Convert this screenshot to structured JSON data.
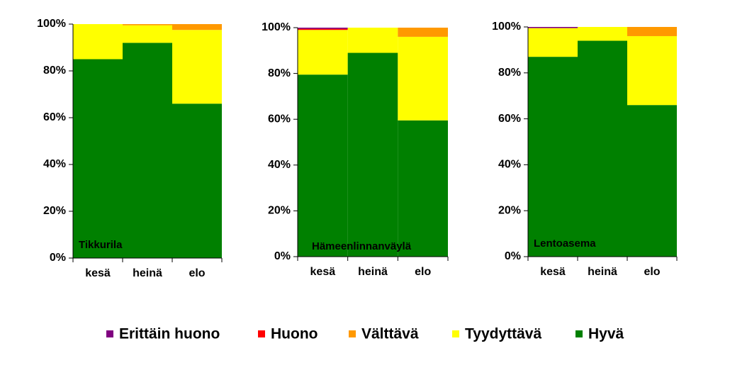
{
  "chart_data": [
    {
      "type": "bar",
      "stacked": true,
      "title": "Tikkurila",
      "categories": [
        "kesä",
        "heinä",
        "elo"
      ],
      "series": [
        {
          "name": "Erittäin huono",
          "color": "#800080",
          "values": [
            0,
            0,
            0
          ]
        },
        {
          "name": "Huono",
          "color": "#ff0000",
          "values": [
            0,
            0,
            0
          ]
        },
        {
          "name": "Välttävä",
          "color": "#ff9900",
          "values": [
            0,
            0.5,
            2.5
          ]
        },
        {
          "name": "Tyydyttävä",
          "color": "#ffff00",
          "values": [
            15,
            7.5,
            31.5
          ]
        },
        {
          "name": "Hyvä",
          "color": "#008000",
          "values": [
            85,
            92,
            66
          ]
        }
      ],
      "ylim": [
        0,
        100
      ],
      "yticks": [
        {
          "value": 0,
          "label": "0%"
        },
        {
          "value": 20,
          "label": "20%"
        },
        {
          "value": 40,
          "label": "40%"
        },
        {
          "value": 60,
          "label": "60%"
        },
        {
          "value": 80,
          "label": "80%"
        },
        {
          "value": 100,
          "label": "100%"
        }
      ]
    },
    {
      "type": "bar",
      "stacked": true,
      "title": "Hämeenlinnanväylä",
      "categories": [
        "kesä",
        "heinä",
        "elo"
      ],
      "series": [
        {
          "name": "Erittäin huono",
          "color": "#800080",
          "values": [
            0.5,
            0,
            0
          ]
        },
        {
          "name": "Huono",
          "color": "#ff0000",
          "values": [
            0.5,
            0,
            0
          ]
        },
        {
          "name": "Välttävä",
          "color": "#ff9900",
          "values": [
            0,
            0,
            4
          ]
        },
        {
          "name": "Tyydyttävä",
          "color": "#ffff00",
          "values": [
            19.5,
            11,
            36.5
          ]
        },
        {
          "name": "Hyvä",
          "color": "#008000",
          "values": [
            79.5,
            89,
            59.5
          ]
        }
      ],
      "ylim": [
        0,
        100
      ],
      "yticks": [
        {
          "value": 0,
          "label": "0%"
        },
        {
          "value": 20,
          "label": "20%"
        },
        {
          "value": 40,
          "label": "40%"
        },
        {
          "value": 60,
          "label": "60%"
        },
        {
          "value": 80,
          "label": "80%"
        },
        {
          "value": 100,
          "label": "100%"
        }
      ]
    },
    {
      "type": "bar",
      "stacked": true,
      "title": "Lentoasema",
      "categories": [
        "kesä",
        "heinä",
        "elo"
      ],
      "series": [
        {
          "name": "Erittäin huono",
          "color": "#800080",
          "values": [
            0.5,
            0,
            0
          ]
        },
        {
          "name": "Huono",
          "color": "#ff0000",
          "values": [
            0,
            0,
            0
          ]
        },
        {
          "name": "Välttävä",
          "color": "#ff9900",
          "values": [
            0,
            0,
            4
          ]
        },
        {
          "name": "Tyydyttävä",
          "color": "#ffff00",
          "values": [
            12.5,
            6,
            30
          ]
        },
        {
          "name": "Hyvä",
          "color": "#008000",
          "values": [
            87,
            94,
            66
          ]
        }
      ],
      "ylim": [
        0,
        100
      ],
      "yticks": [
        {
          "value": 0,
          "label": "0%"
        },
        {
          "value": 20,
          "label": "20%"
        },
        {
          "value": 40,
          "label": "40%"
        },
        {
          "value": 60,
          "label": "60%"
        },
        {
          "value": 80,
          "label": "80%"
        },
        {
          "value": 100,
          "label": "100%"
        }
      ]
    }
  ]
}
